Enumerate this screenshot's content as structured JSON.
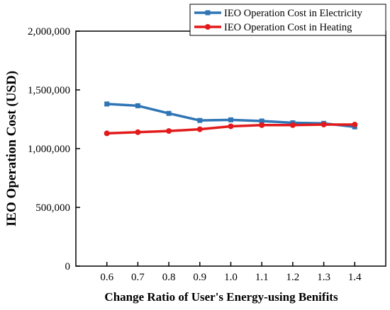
{
  "chart_data": {
    "type": "line",
    "title": "",
    "xlabel": "Change Ratio of User's Energy-using Benifits",
    "ylabel": "IEO Operation Cost (USD)",
    "x": [
      0.6,
      0.7,
      0.8,
      0.9,
      1.0,
      1.1,
      1.2,
      1.3,
      1.4
    ],
    "xtick_labels": [
      "0.6",
      "0.7",
      "0.8",
      "0.9",
      "1.0",
      "1.1",
      "1.2",
      "1.3",
      "1.4"
    ],
    "xlim": [
      0.5,
      1.5
    ],
    "ylim": [
      0,
      2000000
    ],
    "yticks": [
      0,
      500000,
      1000000,
      1500000,
      2000000
    ],
    "ytick_labels": [
      "0",
      "500,000",
      "1,000,000",
      "1,500,000",
      "2,000,000"
    ],
    "grid": false,
    "legend_position": "top-right",
    "series": [
      {
        "name": "IEO Operation Cost in Electricity",
        "color": "#2f75b5",
        "marker": "square",
        "values": [
          1380000,
          1365000,
          1300000,
          1240000,
          1245000,
          1235000,
          1220000,
          1215000,
          1185000
        ]
      },
      {
        "name": "IEO Operation Cost in Heating",
        "color": "#e31a1c",
        "marker": "circle",
        "values": [
          1130000,
          1140000,
          1150000,
          1165000,
          1190000,
          1200000,
          1200000,
          1205000,
          1205000
        ]
      }
    ]
  }
}
